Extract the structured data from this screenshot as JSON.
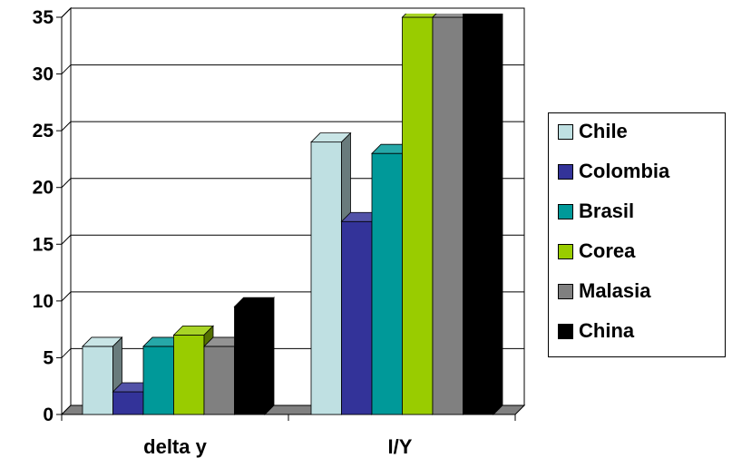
{
  "chart_data": {
    "type": "bar",
    "categories": [
      "delta y",
      "I/Y"
    ],
    "series": [
      {
        "name": "Chile",
        "color": "#bfe0e2",
        "values": [
          6,
          24
        ]
      },
      {
        "name": "Colombia",
        "color": "#333399",
        "values": [
          2,
          17
        ]
      },
      {
        "name": "Brasil",
        "color": "#009999",
        "values": [
          6,
          23
        ]
      },
      {
        "name": "Corea",
        "color": "#99cc00",
        "values": [
          7,
          35
        ]
      },
      {
        "name": "Malasia",
        "color": "#808080",
        "values": [
          6,
          35
        ]
      },
      {
        "name": "China",
        "color": "#000000",
        "values": [
          9.5,
          37
        ]
      }
    ],
    "yticks": [
      "0",
      "5",
      "10",
      "15",
      "20",
      "25",
      "30",
      "35"
    ],
    "ylim": [
      0,
      35
    ],
    "grid": true,
    "legend_position": "right",
    "three_d": true
  }
}
